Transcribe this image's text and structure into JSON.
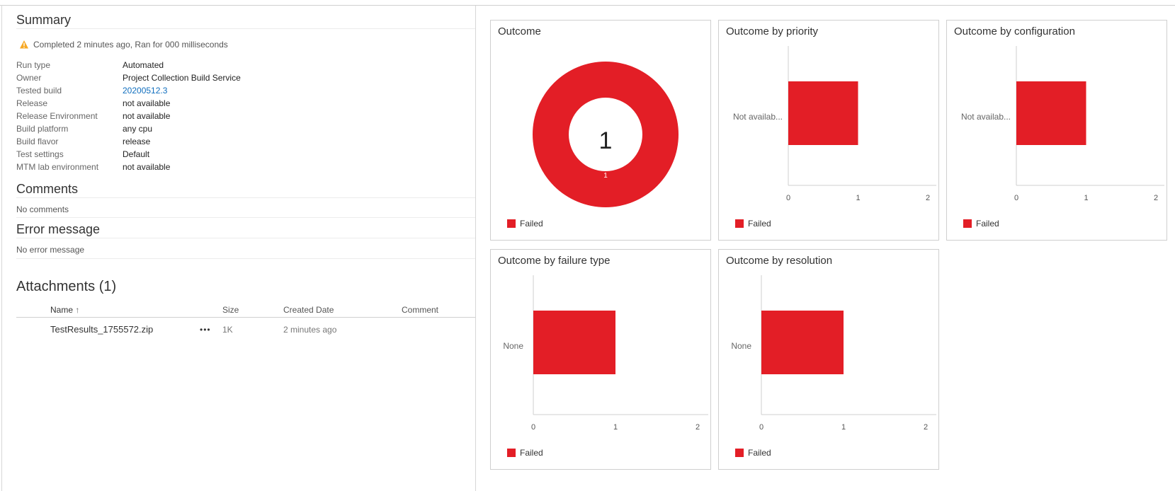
{
  "colors": {
    "failed": "#e31e26",
    "link": "#106ebe",
    "warn": "#f7a823"
  },
  "summary": {
    "title": "Summary",
    "status_icon": "warning-icon",
    "status_text": "Completed 2 minutes ago, Ran for 000 milliseconds",
    "fields": [
      {
        "key": "Run type",
        "value": "Automated"
      },
      {
        "key": "Owner",
        "value": "Project Collection Build Service"
      },
      {
        "key": "Tested build",
        "value": "20200512.3"
      },
      {
        "key": "Release",
        "value": "not available"
      },
      {
        "key": "Release Environment",
        "value": "not available"
      },
      {
        "key": "Build platform",
        "value": "any cpu"
      },
      {
        "key": "Build flavor",
        "value": "release"
      },
      {
        "key": "Test settings",
        "value": "Default"
      },
      {
        "key": "MTM lab environment",
        "value": "not available"
      }
    ]
  },
  "comments": {
    "title": "Comments",
    "text": "No comments"
  },
  "error": {
    "title": "Error message",
    "text": "No error message"
  },
  "attachments": {
    "title": "Attachments (1)",
    "columns": {
      "name": "Name",
      "sort_icon": "sort-ascending-icon",
      "size": "Size",
      "created": "Created Date",
      "comment": "Comment"
    },
    "rows": [
      {
        "name": "TestResults_1755572.zip",
        "more": "•••",
        "size": "1K",
        "created": "2 minutes ago",
        "comment": ""
      }
    ]
  },
  "chart_data": [
    {
      "type": "pie",
      "title": "Outcome",
      "center_label": "1",
      "slices": [
        {
          "name": "Failed",
          "value": 1
        }
      ],
      "legend": [
        "Failed"
      ]
    },
    {
      "type": "bar",
      "orientation": "horizontal",
      "title": "Outcome by priority",
      "categories": [
        "Not availab..."
      ],
      "series": [
        {
          "name": "Failed",
          "values": [
            1
          ]
        }
      ],
      "xlim": [
        0,
        2
      ],
      "ticks": [
        "0",
        "1",
        "2"
      ],
      "legend": [
        "Failed"
      ]
    },
    {
      "type": "bar",
      "orientation": "horizontal",
      "title": "Outcome by configuration",
      "categories": [
        "Not availab..."
      ],
      "series": [
        {
          "name": "Failed",
          "values": [
            1
          ]
        }
      ],
      "xlim": [
        0,
        2
      ],
      "ticks": [
        "0",
        "1",
        "2"
      ],
      "legend": [
        "Failed"
      ]
    },
    {
      "type": "bar",
      "orientation": "horizontal",
      "title": "Outcome by failure type",
      "categories": [
        "None"
      ],
      "series": [
        {
          "name": "Failed",
          "values": [
            1
          ]
        }
      ],
      "xlim": [
        0,
        2
      ],
      "ticks": [
        "0",
        "1",
        "2"
      ],
      "legend": [
        "Failed"
      ]
    },
    {
      "type": "bar",
      "orientation": "horizontal",
      "title": "Outcome by resolution",
      "categories": [
        "None"
      ],
      "series": [
        {
          "name": "Failed",
          "values": [
            1
          ]
        }
      ],
      "xlim": [
        0,
        2
      ],
      "ticks": [
        "0",
        "1",
        "2"
      ],
      "legend": [
        "Failed"
      ]
    }
  ]
}
